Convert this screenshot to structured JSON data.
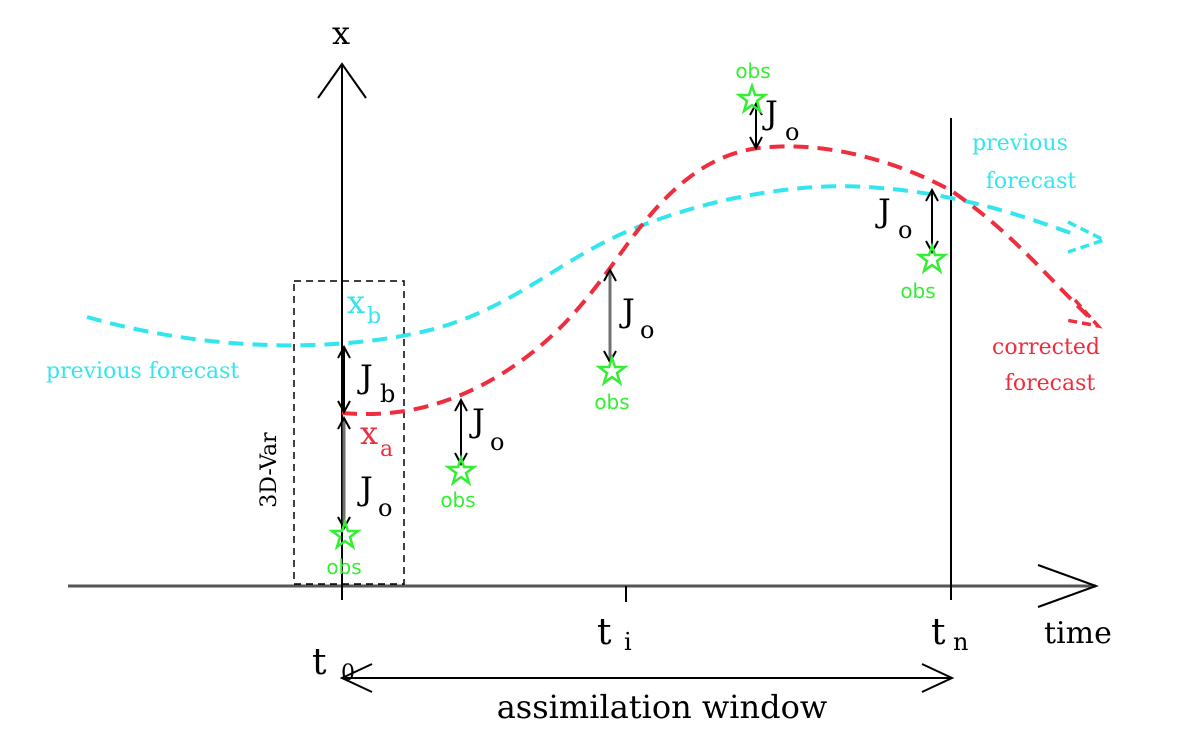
{
  "labels": {
    "x_axis_label": "x",
    "time_axis_label": "time",
    "tick_t0_main": "t",
    "tick_t0_sub": "0",
    "tick_ti_main": "t",
    "tick_ti_sub": "i",
    "tick_tn_main": "t",
    "tick_tn_sub": "n",
    "assimilation_window": "assimilation window",
    "three_d_var": "3D-Var",
    "xb_main": "x",
    "xb_sub": "b",
    "xa_main": "x",
    "xa_sub": "a",
    "jb_main": "J",
    "jb_sub": "b",
    "jo_main": "J",
    "jo_sub": "o",
    "obs": "obs",
    "previous_forecast_left": "previous forecast",
    "previous_forecast_right_line1": "previous",
    "previous_forecast_right_line2": "forecast",
    "corrected_forecast_line1": "corrected",
    "corrected_forecast_line2": "forecast"
  },
  "colors": {
    "previous_forecast": "#33e6ee",
    "corrected_forecast": "#ee2d3d",
    "observation": "#33ee33",
    "axis": "#000000",
    "gray_arrow": "#707070"
  },
  "icons": {
    "observation_marker": "star-outline-icon"
  }
}
